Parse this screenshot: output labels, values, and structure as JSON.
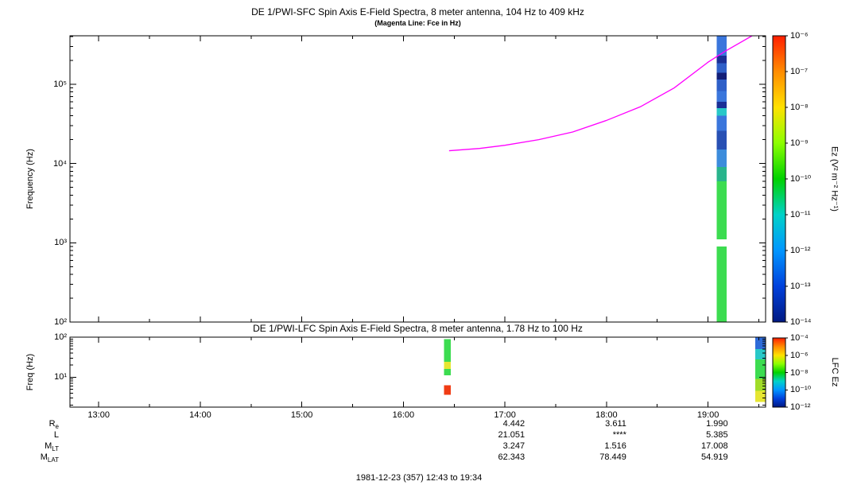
{
  "page": {
    "footer": "1981-12-23 (357) 12:43 to 19:34"
  },
  "annotations": {
    "value_columns_at": [
      "17:00",
      "18:00",
      "19:00"
    ],
    "rows": [
      {
        "base": "R",
        "sub": "e",
        "values": [
          "4.442",
          "3.611",
          "1.990"
        ]
      },
      {
        "base": "L",
        "sub": "",
        "values": [
          "21.051",
          "****",
          "5.385"
        ]
      },
      {
        "base": "M",
        "sub": "LT",
        "values": [
          "3.247",
          "1.516",
          "17.008"
        ]
      },
      {
        "base": "M",
        "sub": "LAT",
        "values": [
          "62.343",
          "78.449",
          "54.919"
        ]
      }
    ]
  },
  "chart_data": [
    {
      "type": "heatmap",
      "panel": "sfc",
      "title": "DE 1/PWI-SFC  Spin Axis E-Field Spectra, 8 meter antenna, 104 Hz to 409 kHz",
      "subtitle": "(Magenta Line: Fce in Hz)",
      "ylabel": "Frequency (Hz)",
      "yscale": "log",
      "ylim": [
        100,
        409000
      ],
      "yticks": [
        {
          "value": 100,
          "label": "10²"
        },
        {
          "value": 1000,
          "label": "10³"
        },
        {
          "value": 10000,
          "label": "10⁴"
        },
        {
          "value": 100000,
          "label": "10⁵"
        }
      ],
      "time_range": [
        "12:43",
        "19:34"
      ],
      "xticks": [
        "13:00",
        "14:00",
        "15:00",
        "16:00",
        "17:00",
        "18:00",
        "19:00"
      ],
      "fce_line": {
        "name": "Fce",
        "color": "#ff00ff",
        "points": [
          [
            "16:27",
            14500
          ],
          [
            "16:45",
            15500
          ],
          [
            "17:00",
            17000
          ],
          [
            "17:20",
            20000
          ],
          [
            "17:40",
            25000
          ],
          [
            "18:00",
            35000
          ],
          [
            "18:20",
            52000
          ],
          [
            "18:40",
            90000
          ],
          [
            "19:00",
            190000
          ],
          [
            "19:10",
            260000
          ],
          [
            "19:26",
            430000
          ]
        ]
      },
      "columns": [
        {
          "t_start": "19:05",
          "t_end": "19:11",
          "segments": [
            {
              "f_high": 409000,
              "f_low": 230000,
              "color": "#3a76dc"
            },
            {
              "f_high": 230000,
              "f_low": 185000,
              "color": "#1a2f96"
            },
            {
              "f_high": 185000,
              "f_low": 140000,
              "color": "#2e5fc8"
            },
            {
              "f_high": 140000,
              "f_low": 115000,
              "color": "#121e78"
            },
            {
              "f_high": 115000,
              "f_low": 82000,
              "color": "#2e5fc8"
            },
            {
              "f_high": 82000,
              "f_low": 60000,
              "color": "#3a76dc"
            },
            {
              "f_high": 60000,
              "f_low": 50000,
              "color": "#1a2f96"
            },
            {
              "f_high": 50000,
              "f_low": 40000,
              "color": "#28c8c8"
            },
            {
              "f_high": 40000,
              "f_low": 26000,
              "color": "#3a76dc"
            },
            {
              "f_high": 26000,
              "f_low": 15000,
              "color": "#2850b4"
            },
            {
              "f_high": 15000,
              "f_low": 9000,
              "color": "#3c8cdc"
            },
            {
              "f_high": 9000,
              "f_low": 6000,
              "color": "#28b48c"
            },
            {
              "f_high": 6000,
              "f_low": 1100,
              "color": "#3cdc50"
            },
            {
              "f_high": 900,
              "f_low": 100,
              "color": "#3cdc50"
            }
          ]
        }
      ],
      "colorbar": {
        "label": "Ez (V² m⁻² Hz⁻¹)",
        "tick_labels": [
          "10⁻⁶",
          "10⁻⁷",
          "10⁻⁸",
          "10⁻⁹",
          "10⁻¹⁰",
          "10⁻¹¹",
          "10⁻¹²",
          "10⁻¹³",
          "10⁻¹⁴"
        ],
        "gradient": [
          "#ff1e00",
          "#ff8c00",
          "#ffe100",
          "#8cff00",
          "#00d200",
          "#00d2c8",
          "#0096ff",
          "#0041dc",
          "#001982"
        ]
      }
    },
    {
      "type": "heatmap",
      "panel": "lfc",
      "title": "DE 1/PWI-LFC  Spin Axis E-Field Spectra, 8 meter antenna, 1.78 Hz to 100 Hz",
      "ylabel": "Freq (Hz)",
      "yscale": "log",
      "ylim": [
        1.78,
        100
      ],
      "yticks": [
        {
          "value": 10,
          "label": "10¹"
        },
        {
          "value": 100,
          "label": "10²"
        }
      ],
      "columns": [
        {
          "t_start": "16:24",
          "t_end": "16:28",
          "segments": [
            {
              "f_high": 90,
              "f_low": 24,
              "color": "#3cdc50"
            },
            {
              "f_high": 24,
              "f_low": 16,
              "color": "#e6e632"
            },
            {
              "f_high": 16,
              "f_low": 11,
              "color": "#3cdc50"
            },
            {
              "f_high": 6.2,
              "f_low": 3.6,
              "color": "#f03c14"
            }
          ]
        },
        {
          "t_start": "19:28",
          "t_end": "19:34",
          "segments": [
            {
              "f_high": 100,
              "f_low": 50,
              "color": "#2e6bd8"
            },
            {
              "f_high": 50,
              "f_low": 28,
              "color": "#28c8c8"
            },
            {
              "f_high": 28,
              "f_low": 9,
              "color": "#3cdc50"
            },
            {
              "f_high": 9,
              "f_low": 4.5,
              "color": "#a0dc28"
            },
            {
              "f_high": 4.5,
              "f_low": 2.4,
              "color": "#e6e632"
            }
          ]
        }
      ],
      "colorbar": {
        "label": "LFC Ez",
        "tick_labels": [
          "10⁻⁴",
          "10⁻⁶",
          "10⁻⁸",
          "10⁻¹⁰",
          "10⁻¹²"
        ],
        "gradient": [
          "#ff1e00",
          "#ff8c00",
          "#ffe100",
          "#8cff00",
          "#00d200",
          "#00d2c8",
          "#0096ff",
          "#0041dc",
          "#001982"
        ]
      }
    }
  ]
}
